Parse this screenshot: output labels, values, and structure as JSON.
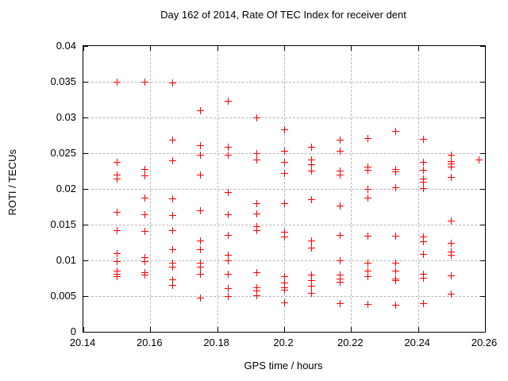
{
  "chart_data": {
    "type": "scatter",
    "title": "Day 162 of 2014, Rate Of TEC Index for receiver dent",
    "xlabel": "GPS time / hours",
    "ylabel": "ROTI / TECUs",
    "xlim": [
      20.14,
      20.26
    ],
    "ylim": [
      0,
      0.04
    ],
    "grid": true,
    "legend": "none",
    "xticks": [
      {
        "v": 20.14,
        "label": "20.14"
      },
      {
        "v": 20.16,
        "label": "20.16"
      },
      {
        "v": 20.18,
        "label": "20.18"
      },
      {
        "v": 20.2,
        "label": "20.2"
      },
      {
        "v": 20.22,
        "label": "20.22"
      },
      {
        "v": 20.24,
        "label": "20.24"
      },
      {
        "v": 20.26,
        "label": "20.26"
      }
    ],
    "yticks": [
      {
        "v": 0,
        "label": "0"
      },
      {
        "v": 0.005,
        "label": "0.005"
      },
      {
        "v": 0.01,
        "label": "0.01"
      },
      {
        "v": 0.015,
        "label": "0.015"
      },
      {
        "v": 0.02,
        "label": "0.02"
      },
      {
        "v": 0.025,
        "label": "0.025"
      },
      {
        "v": 0.03,
        "label": "0.03"
      },
      {
        "v": 0.035,
        "label": "0.035"
      },
      {
        "v": 0.04,
        "label": "0.04"
      }
    ],
    "colors": {
      "background": "#ffffff",
      "frame": "#000000",
      "grid": "#b8b8b8",
      "marker": "#ff0000"
    },
    "marker": {
      "shape": "plus",
      "color": "#ff0000",
      "size": 9
    },
    "series": [
      {
        "name": "ROTI",
        "points": [
          [
            20.15,
            0.035
          ],
          [
            20.15,
            0.0237
          ],
          [
            20.15,
            0.0219
          ],
          [
            20.15,
            0.0214
          ],
          [
            20.15,
            0.0167
          ],
          [
            20.15,
            0.0142
          ],
          [
            20.15,
            0.0109
          ],
          [
            20.15,
            0.0098
          ],
          [
            20.15,
            0.0085
          ],
          [
            20.15,
            0.0081
          ],
          [
            20.15,
            0.0077
          ],
          [
            20.1583,
            0.035
          ],
          [
            20.1583,
            0.0227
          ],
          [
            20.1583,
            0.0218
          ],
          [
            20.1583,
            0.0187
          ],
          [
            20.1583,
            0.0164
          ],
          [
            20.1583,
            0.0141
          ],
          [
            20.1583,
            0.0104
          ],
          [
            20.1583,
            0.0098
          ],
          [
            20.1583,
            0.0083
          ],
          [
            20.1583,
            0.008
          ],
          [
            20.1667,
            0.0348
          ],
          [
            20.1667,
            0.0268
          ],
          [
            20.1667,
            0.024
          ],
          [
            20.1667,
            0.0186
          ],
          [
            20.1667,
            0.0163
          ],
          [
            20.1667,
            0.0142
          ],
          [
            20.1667,
            0.0115
          ],
          [
            20.1667,
            0.0096
          ],
          [
            20.1667,
            0.0091
          ],
          [
            20.1667,
            0.0073
          ],
          [
            20.1667,
            0.0065
          ],
          [
            20.175,
            0.031
          ],
          [
            20.175,
            0.0261
          ],
          [
            20.175,
            0.0247
          ],
          [
            20.175,
            0.022
          ],
          [
            20.175,
            0.017
          ],
          [
            20.175,
            0.0127
          ],
          [
            20.175,
            0.0115
          ],
          [
            20.175,
            0.0096
          ],
          [
            20.175,
            0.0091
          ],
          [
            20.175,
            0.0081
          ],
          [
            20.175,
            0.0047
          ],
          [
            20.1833,
            0.0323
          ],
          [
            20.1833,
            0.0258
          ],
          [
            20.1833,
            0.0247
          ],
          [
            20.1833,
            0.0195
          ],
          [
            20.1833,
            0.0164
          ],
          [
            20.1833,
            0.0135
          ],
          [
            20.1833,
            0.0107
          ],
          [
            20.1833,
            0.01
          ],
          [
            20.1833,
            0.0081
          ],
          [
            20.1833,
            0.0061
          ],
          [
            20.1833,
            0.0049
          ],
          [
            20.1917,
            0.03
          ],
          [
            20.1917,
            0.025
          ],
          [
            20.1917,
            0.0241
          ],
          [
            20.1917,
            0.018
          ],
          [
            20.1917,
            0.0165
          ],
          [
            20.1917,
            0.0147
          ],
          [
            20.1917,
            0.0142
          ],
          [
            20.1917,
            0.0083
          ],
          [
            20.1917,
            0.0062
          ],
          [
            20.1917,
            0.0057
          ],
          [
            20.1917,
            0.0051
          ],
          [
            20.2,
            0.0283
          ],
          [
            20.2,
            0.0253
          ],
          [
            20.2,
            0.0237
          ],
          [
            20.2,
            0.0222
          ],
          [
            20.2,
            0.018
          ],
          [
            20.2,
            0.014
          ],
          [
            20.2,
            0.0133
          ],
          [
            20.2,
            0.0077
          ],
          [
            20.2,
            0.0068
          ],
          [
            20.2,
            0.0062
          ],
          [
            20.2,
            0.0058
          ],
          [
            20.2,
            0.0041
          ],
          [
            20.2083,
            0.0258
          ],
          [
            20.2083,
            0.0241
          ],
          [
            20.2083,
            0.0234
          ],
          [
            20.2083,
            0.0225
          ],
          [
            20.2083,
            0.0185
          ],
          [
            20.2083,
            0.0127
          ],
          [
            20.2083,
            0.0117
          ],
          [
            20.2083,
            0.0079
          ],
          [
            20.2083,
            0.0072
          ],
          [
            20.2083,
            0.0064
          ],
          [
            20.2083,
            0.0054
          ],
          [
            20.2167,
            0.0268
          ],
          [
            20.2167,
            0.0253
          ],
          [
            20.2167,
            0.0225
          ],
          [
            20.2167,
            0.022
          ],
          [
            20.2167,
            0.0176
          ],
          [
            20.2167,
            0.0135
          ],
          [
            20.2167,
            0.01
          ],
          [
            20.2167,
            0.0079
          ],
          [
            20.2167,
            0.0074
          ],
          [
            20.2167,
            0.0069
          ],
          [
            20.2167,
            0.004
          ],
          [
            20.225,
            0.0271
          ],
          [
            20.225,
            0.0231
          ],
          [
            20.225,
            0.0226
          ],
          [
            20.225,
            0.02
          ],
          [
            20.225,
            0.0187
          ],
          [
            20.225,
            0.0134
          ],
          [
            20.225,
            0.0096
          ],
          [
            20.225,
            0.0085
          ],
          [
            20.225,
            0.0077
          ],
          [
            20.225,
            0.0038
          ],
          [
            20.2333,
            0.0281
          ],
          [
            20.2333,
            0.0227
          ],
          [
            20.2333,
            0.0224
          ],
          [
            20.2333,
            0.0202
          ],
          [
            20.2333,
            0.0134
          ],
          [
            20.2333,
            0.0096
          ],
          [
            20.2333,
            0.0085
          ],
          [
            20.2333,
            0.0074
          ],
          [
            20.2333,
            0.0072
          ],
          [
            20.2333,
            0.0037
          ],
          [
            20.2417,
            0.027
          ],
          [
            20.2417,
            0.0237
          ],
          [
            20.2417,
            0.0226
          ],
          [
            20.2417,
            0.0214
          ],
          [
            20.2417,
            0.021
          ],
          [
            20.2417,
            0.0201
          ],
          [
            20.2417,
            0.0133
          ],
          [
            20.2417,
            0.0126
          ],
          [
            20.2417,
            0.0108
          ],
          [
            20.2417,
            0.0081
          ],
          [
            20.2417,
            0.0075
          ],
          [
            20.2417,
            0.0039
          ],
          [
            20.25,
            0.0247
          ],
          [
            20.25,
            0.0238
          ],
          [
            20.25,
            0.0235
          ],
          [
            20.25,
            0.0231
          ],
          [
            20.25,
            0.0216
          ],
          [
            20.25,
            0.0155
          ],
          [
            20.25,
            0.0124
          ],
          [
            20.25,
            0.0112
          ],
          [
            20.25,
            0.0107
          ],
          [
            20.25,
            0.0078
          ],
          [
            20.25,
            0.0053
          ],
          [
            20.2583,
            0.0241
          ]
        ]
      }
    ]
  }
}
